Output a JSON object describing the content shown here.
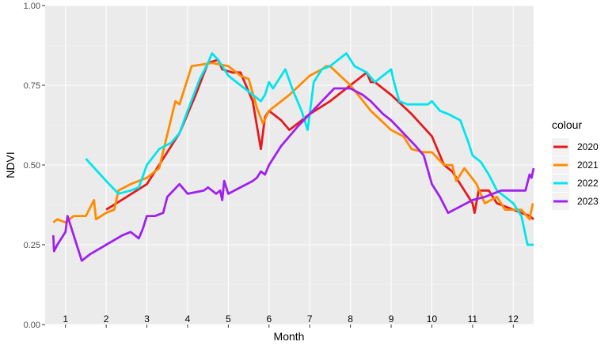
{
  "chart_data": {
    "type": "line",
    "title": "",
    "xlabel": "Month",
    "ylabel": "NDVI",
    "xlim": [
      0.5,
      12.5
    ],
    "ylim": [
      0,
      1
    ],
    "y_ticks": [
      "0.00",
      "0.25",
      "0.50",
      "0.75",
      "1.00"
    ],
    "categories": [
      "1",
      "2",
      "3",
      "4",
      "5",
      "6",
      "7",
      "8",
      "9",
      "10",
      "11",
      "12"
    ],
    "grid": true,
    "legend": {
      "title": "colour",
      "position": "right"
    },
    "series": [
      {
        "name": "2020",
        "color": "#E41A1C",
        "points": [
          [
            2.0,
            0.36
          ],
          [
            2.5,
            0.4
          ],
          [
            3.0,
            0.44
          ],
          [
            3.4,
            0.52
          ],
          [
            3.8,
            0.6
          ],
          [
            4.2,
            0.72
          ],
          [
            4.5,
            0.82
          ],
          [
            4.75,
            0.83
          ],
          [
            4.85,
            0.8
          ],
          [
            5.1,
            0.79
          ],
          [
            5.3,
            0.79
          ],
          [
            5.6,
            0.7
          ],
          [
            5.8,
            0.55
          ],
          [
            5.9,
            0.65
          ],
          [
            6.0,
            0.67
          ],
          [
            6.3,
            0.64
          ],
          [
            6.5,
            0.61
          ],
          [
            7.0,
            0.66
          ],
          [
            7.5,
            0.7
          ],
          [
            8.0,
            0.75
          ],
          [
            8.4,
            0.79
          ],
          [
            8.5,
            0.76
          ],
          [
            8.6,
            0.76
          ],
          [
            9.0,
            0.72
          ],
          [
            9.5,
            0.66
          ],
          [
            10.0,
            0.59
          ],
          [
            10.3,
            0.5
          ],
          [
            10.5,
            0.48
          ],
          [
            10.8,
            0.42
          ],
          [
            11.0,
            0.38
          ],
          [
            11.05,
            0.35
          ],
          [
            11.15,
            0.42
          ],
          [
            11.4,
            0.42
          ],
          [
            11.6,
            0.38
          ],
          [
            12.0,
            0.36
          ],
          [
            12.4,
            0.34
          ],
          [
            12.5,
            0.33
          ]
        ]
      },
      {
        "name": "2021",
        "color": "#FF8C00",
        "points": [
          [
            0.7,
            0.32
          ],
          [
            0.8,
            0.33
          ],
          [
            1.0,
            0.32
          ],
          [
            1.2,
            0.34
          ],
          [
            1.5,
            0.34
          ],
          [
            1.7,
            0.39
          ],
          [
            1.75,
            0.33
          ],
          [
            2.0,
            0.35
          ],
          [
            2.2,
            0.36
          ],
          [
            2.3,
            0.42
          ],
          [
            2.6,
            0.44
          ],
          [
            3.0,
            0.46
          ],
          [
            3.3,
            0.49
          ],
          [
            3.7,
            0.7
          ],
          [
            3.8,
            0.69
          ],
          [
            4.1,
            0.81
          ],
          [
            4.6,
            0.82
          ],
          [
            5.0,
            0.81
          ],
          [
            5.3,
            0.78
          ],
          [
            5.5,
            0.77
          ],
          [
            5.7,
            0.68
          ],
          [
            5.85,
            0.63
          ],
          [
            6.0,
            0.67
          ],
          [
            6.5,
            0.72
          ],
          [
            7.0,
            0.78
          ],
          [
            7.3,
            0.8
          ],
          [
            7.4,
            0.81
          ],
          [
            7.5,
            0.81
          ],
          [
            8.0,
            0.75
          ],
          [
            8.5,
            0.67
          ],
          [
            9.0,
            0.61
          ],
          [
            9.3,
            0.59
          ],
          [
            9.5,
            0.55
          ],
          [
            9.8,
            0.54
          ],
          [
            10.0,
            0.54
          ],
          [
            10.3,
            0.5
          ],
          [
            10.5,
            0.5
          ],
          [
            10.6,
            0.45
          ],
          [
            10.8,
            0.49
          ],
          [
            11.1,
            0.44
          ],
          [
            11.3,
            0.38
          ],
          [
            11.6,
            0.4
          ],
          [
            11.8,
            0.36
          ],
          [
            12.0,
            0.36
          ],
          [
            12.2,
            0.36
          ],
          [
            12.4,
            0.33
          ],
          [
            12.48,
            0.38
          ]
        ]
      },
      {
        "name": "2022",
        "color": "#00E5EE",
        "points": [
          [
            1.5,
            0.52
          ],
          [
            2.0,
            0.45
          ],
          [
            2.3,
            0.41
          ],
          [
            2.6,
            0.42
          ],
          [
            2.8,
            0.43
          ],
          [
            3.0,
            0.5
          ],
          [
            3.3,
            0.55
          ],
          [
            3.6,
            0.57
          ],
          [
            3.8,
            0.6
          ],
          [
            4.0,
            0.67
          ],
          [
            4.3,
            0.77
          ],
          [
            4.5,
            0.82
          ],
          [
            4.6,
            0.85
          ],
          [
            4.75,
            0.83
          ],
          [
            5.0,
            0.78
          ],
          [
            5.3,
            0.75
          ],
          [
            5.5,
            0.73
          ],
          [
            5.7,
            0.71
          ],
          [
            5.8,
            0.7
          ],
          [
            5.9,
            0.72
          ],
          [
            6.0,
            0.76
          ],
          [
            6.1,
            0.74
          ],
          [
            6.3,
            0.78
          ],
          [
            6.4,
            0.8
          ],
          [
            6.6,
            0.73
          ],
          [
            6.8,
            0.67
          ],
          [
            6.95,
            0.61
          ],
          [
            7.0,
            0.66
          ],
          [
            7.1,
            0.76
          ],
          [
            7.3,
            0.8
          ],
          [
            7.5,
            0.81
          ],
          [
            7.8,
            0.84
          ],
          [
            7.9,
            0.85
          ],
          [
            8.1,
            0.81
          ],
          [
            8.4,
            0.79
          ],
          [
            8.6,
            0.76
          ],
          [
            8.8,
            0.78
          ],
          [
            9.0,
            0.8
          ],
          [
            9.05,
            0.77
          ],
          [
            9.2,
            0.7
          ],
          [
            9.4,
            0.69
          ],
          [
            9.7,
            0.69
          ],
          [
            9.9,
            0.69
          ],
          [
            10.0,
            0.7
          ],
          [
            10.2,
            0.67
          ],
          [
            10.4,
            0.66
          ],
          [
            10.7,
            0.64
          ],
          [
            10.9,
            0.57
          ],
          [
            11.0,
            0.53
          ],
          [
            11.2,
            0.51
          ],
          [
            11.4,
            0.47
          ],
          [
            11.6,
            0.42
          ],
          [
            11.8,
            0.4
          ],
          [
            12.0,
            0.38
          ],
          [
            12.2,
            0.34
          ],
          [
            12.35,
            0.25
          ],
          [
            12.5,
            0.25
          ]
        ]
      },
      {
        "name": "2023",
        "color": "#A020F0",
        "points": [
          [
            0.7,
            0.28
          ],
          [
            0.72,
            0.23
          ],
          [
            0.8,
            0.25
          ],
          [
            1.0,
            0.29
          ],
          [
            1.05,
            0.34
          ],
          [
            1.4,
            0.2
          ],
          [
            1.6,
            0.22
          ],
          [
            2.0,
            0.25
          ],
          [
            2.4,
            0.28
          ],
          [
            2.6,
            0.29
          ],
          [
            2.8,
            0.27
          ],
          [
            2.9,
            0.3
          ],
          [
            3.0,
            0.34
          ],
          [
            3.2,
            0.34
          ],
          [
            3.4,
            0.35
          ],
          [
            3.5,
            0.4
          ],
          [
            3.8,
            0.44
          ],
          [
            4.0,
            0.41
          ],
          [
            4.4,
            0.42
          ],
          [
            4.5,
            0.43
          ],
          [
            4.7,
            0.41
          ],
          [
            4.8,
            0.42
          ],
          [
            4.85,
            0.39
          ],
          [
            4.9,
            0.45
          ],
          [
            5.0,
            0.41
          ],
          [
            5.3,
            0.43
          ],
          [
            5.6,
            0.45
          ],
          [
            5.7,
            0.46
          ],
          [
            5.8,
            0.48
          ],
          [
            5.9,
            0.47
          ],
          [
            6.0,
            0.5
          ],
          [
            6.3,
            0.56
          ],
          [
            6.7,
            0.62
          ],
          [
            7.0,
            0.66
          ],
          [
            7.3,
            0.7
          ],
          [
            7.6,
            0.74
          ],
          [
            8.0,
            0.74
          ],
          [
            8.3,
            0.72
          ],
          [
            8.5,
            0.7
          ],
          [
            8.8,
            0.66
          ],
          [
            9.0,
            0.64
          ],
          [
            9.3,
            0.6
          ],
          [
            9.6,
            0.56
          ],
          [
            9.8,
            0.53
          ],
          [
            10.0,
            0.44
          ],
          [
            10.2,
            0.4
          ],
          [
            10.4,
            0.35
          ],
          [
            10.7,
            0.37
          ],
          [
            11.0,
            0.39
          ],
          [
            11.3,
            0.4
          ],
          [
            11.7,
            0.42
          ],
          [
            12.0,
            0.42
          ],
          [
            12.3,
            0.42
          ],
          [
            12.4,
            0.47
          ],
          [
            12.45,
            0.46
          ],
          [
            12.5,
            0.49
          ]
        ]
      }
    ]
  }
}
